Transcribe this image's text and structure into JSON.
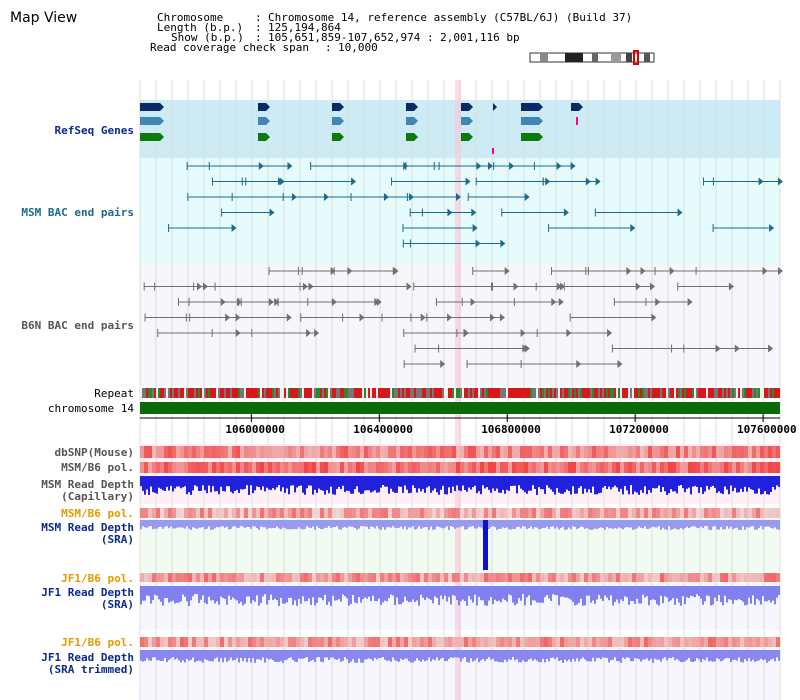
{
  "view_title": "Map View",
  "info": {
    "chromosome_label": "Chromosome",
    "chromosome_value": "Chromosome 14, reference assembly (C57BL/6J) (Build 37)",
    "length_label": "Length (b.p.)",
    "length_value": "125,194,864",
    "show_label": "Show (b.p.)",
    "show_value": "105,651,859-107,652,974 : 2,001,116 bp",
    "span_label": "Read coverage check span",
    "span_value": "10,000"
  },
  "tracks": {
    "refseq": "RefSeq Genes",
    "msm_bac": "MSM BAC end pairs",
    "b6n_bac": "B6N BAC end pairs",
    "repeat": "Repeat",
    "chrom": "chromosome 14",
    "dbsnp": "dbSNP(Mouse)",
    "msm_b6_pol": "MSM/B6 pol.",
    "msm_depth_cap_1": "MSM Read Depth",
    "msm_depth_cap_2": "(Capillary)",
    "msm_b6_pol2": "MSM/B6 pol.",
    "msm_depth_sra_1": "MSM Read Depth",
    "msm_depth_sra_2": "(SRA)",
    "jf1_pol": "JF1/B6 pol.",
    "jf1_depth_sra_1": "JF1 Read Depth",
    "jf1_depth_sra_2": "(SRA)",
    "jf1_pol2": "JF1/B6 pol.",
    "jf1_trim_1": "JF1 Read Depth",
    "jf1_trim_2": "(SRA trimmed)"
  },
  "ruler": {
    "ticks": [
      "106000000",
      "106400000",
      "106800000",
      "107200000",
      "107600000"
    ],
    "tick_positions": [
      106000000,
      106400000,
      106800000,
      107200000,
      107600000
    ]
  },
  "chart_data": {
    "type": "table",
    "x_range": [
      105651859,
      107652974
    ],
    "x_ticks": [
      106000000,
      106400000,
      106800000,
      107200000,
      107600000
    ],
    "coverage_span": 10000
  },
  "colors": {
    "refseq_bg": "#ccebf5",
    "msm_bg": "#e6fbfb",
    "b6n_bg": "#f6f6fb",
    "polymorph_bg": "#fff0f5",
    "depth_bg": "#f2fbf2",
    "gene_navy": "#0a2a66",
    "gene_blue": "#3f86b3",
    "gene_green": "#0e7a0e",
    "msm_line": "#1c6b8c",
    "b6n_line": "#707070",
    "chrom_green": "#0a6a0a",
    "depth_blue": "#2020dd",
    "depth_light": "#9999ee",
    "pol_red": "#e85050",
    "orange_label": "#e39a00",
    "navy_label": "#0b2a8c",
    "teal_label": "#1c6b8c"
  }
}
